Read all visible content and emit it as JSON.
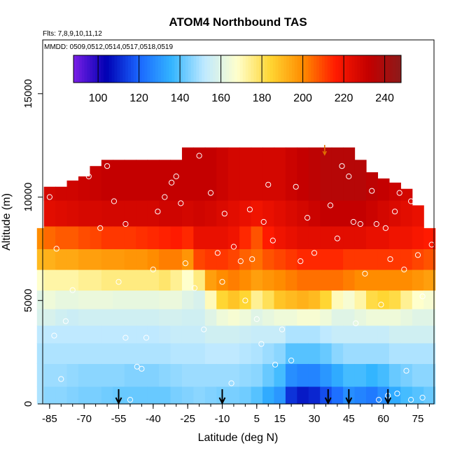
{
  "chart_data": {
    "type": "heatmap",
    "title": "ATOM4 Northbound TAS",
    "subtitle_flights": "Flts: 7,8,9,10,11,12",
    "subtitle_dates": "MMDD: 0509,0512,0514,0517,0518,0519",
    "xlabel": "Latitude (deg N)",
    "ylabel": "Altitude (m)",
    "xlim": [
      -88,
      82
    ],
    "ylim": [
      0,
      17600
    ],
    "x_ticks": [
      -85,
      -70,
      -55,
      -40,
      -25,
      -10,
      5,
      15,
      30,
      45,
      60,
      75
    ],
    "x_tick_labels": [
      "-85",
      "-70",
      "-55",
      "-40",
      "-25",
      "-10",
      "5",
      "15",
      "30",
      "45",
      "60",
      "75"
    ],
    "y_ticks": [
      0,
      5000,
      10000,
      15000
    ],
    "y_tick_labels": [
      "0",
      "5000",
      "10000",
      "15000"
    ],
    "grid": false,
    "colorbar": {
      "min": 88,
      "max": 248,
      "ticks": [
        100,
        120,
        140,
        160,
        180,
        200,
        220,
        240
      ],
      "tick_labels": [
        "100",
        "120",
        "140",
        "160",
        "180",
        "200",
        "220",
        "240"
      ],
      "colors": [
        "#7a1fe6",
        "#0000b3",
        "#1a66ff",
        "#33b5ff",
        "#bfe9ff",
        "#ffffcc",
        "#ffd633",
        "#ff8c00",
        "#ff1a00",
        "#c40000",
        "#8c1a1a"
      ],
      "placement": "top-inside"
    },
    "columns": [
      {
        "lat": -88,
        "top": 8500,
        "vals": [
          150,
          150,
          150,
          152,
          158,
          160,
          168,
          190,
          200,
          222,
          226
        ]
      },
      {
        "lat": -85,
        "top": 10500,
        "vals": [
          146,
          148,
          150,
          152,
          158,
          164,
          172,
          192,
          205,
          224,
          228
        ]
      },
      {
        "lat": -80,
        "top": 10500,
        "vals": [
          146,
          148,
          150,
          152,
          156,
          162,
          172,
          194,
          207,
          225,
          229
        ]
      },
      {
        "lat": -75,
        "top": 10800,
        "vals": [
          145,
          147,
          150,
          152,
          155,
          162,
          172,
          194,
          207,
          226,
          229
        ]
      },
      {
        "lat": -70,
        "top": 11000,
        "vals": [
          144,
          146,
          150,
          152,
          156,
          163,
          174,
          196,
          209,
          227,
          230
        ]
      },
      {
        "lat": -65,
        "top": 11500,
        "vals": [
          144,
          146,
          150,
          152,
          156,
          163,
          174,
          196,
          210,
          227,
          231
        ]
      },
      {
        "lat": -60,
        "top": 11800,
        "vals": [
          143,
          146,
          150,
          152,
          156,
          163,
          176,
          197,
          212,
          228,
          232
        ]
      },
      {
        "lat": -55,
        "top": 11800,
        "vals": [
          142,
          146,
          150,
          152,
          156,
          162,
          176,
          197,
          212,
          228,
          232
        ]
      },
      {
        "lat": -50,
        "top": 11800,
        "vals": [
          142,
          145,
          150,
          152,
          156,
          162,
          176,
          198,
          212,
          228,
          232
        ]
      },
      {
        "lat": -45,
        "top": 11800,
        "vals": [
          142,
          145,
          150,
          152,
          156,
          162,
          176,
          198,
          213,
          228,
          232
        ]
      },
      {
        "lat": -40,
        "top": 11800,
        "vals": [
          142,
          145,
          150,
          152,
          156,
          162,
          176,
          200,
          214,
          228,
          232
        ]
      },
      {
        "lat": -35,
        "top": 11800,
        "vals": [
          142,
          146,
          150,
          153,
          157,
          163,
          178,
          202,
          215,
          229,
          232
        ]
      },
      {
        "lat": -30,
        "top": 11800,
        "vals": [
          144,
          147,
          151,
          154,
          157,
          163,
          174,
          202,
          216,
          229,
          232
        ]
      },
      {
        "lat": -25,
        "top": 12400,
        "vals": [
          145,
          148,
          151,
          154,
          156,
          160,
          168,
          198,
          214,
          228,
          232
        ]
      },
      {
        "lat": -20,
        "top": 12400,
        "vals": [
          146,
          148,
          151,
          154,
          156,
          158,
          176,
          210,
          222,
          229,
          232
        ]
      },
      {
        "lat": -15,
        "top": 12400,
        "vals": [
          145,
          148,
          152,
          156,
          160,
          170,
          196,
          212,
          222,
          228,
          232
        ]
      },
      {
        "lat": -10,
        "top": 12400,
        "vals": [
          144,
          148,
          152,
          156,
          164,
          184,
          200,
          212,
          222,
          226,
          230
        ]
      },
      {
        "lat": -5,
        "top": 12400,
        "vals": [
          144,
          148,
          152,
          156,
          166,
          188,
          202,
          210,
          220,
          224,
          228
        ]
      },
      {
        "lat": 0,
        "top": 12400,
        "vals": [
          143,
          147,
          151,
          155,
          164,
          184,
          200,
          206,
          214,
          222,
          228
        ]
      },
      {
        "lat": 5,
        "top": 12400,
        "vals": [
          140,
          146,
          150,
          154,
          160,
          174,
          196,
          204,
          208,
          220,
          228
        ]
      },
      {
        "lat": 10,
        "top": 12400,
        "vals": [
          134,
          142,
          148,
          154,
          162,
          180,
          198,
          208,
          216,
          222,
          228
        ]
      },
      {
        "lat": 15,
        "top": 12400,
        "vals": [
          130,
          138,
          146,
          154,
          164,
          188,
          200,
          210,
          220,
          224,
          228
        ]
      },
      {
        "lat": 20,
        "top": 12400,
        "vals": [
          112,
          128,
          140,
          150,
          164,
          190,
          202,
          212,
          222,
          226,
          230
        ]
      },
      {
        "lat": 25,
        "top": 12400,
        "vals": [
          108,
          126,
          140,
          150,
          166,
          192,
          204,
          214,
          224,
          228,
          232
        ]
      },
      {
        "lat": 30,
        "top": 12400,
        "vals": [
          110,
          126,
          140,
          150,
          166,
          190,
          204,
          214,
          224,
          230,
          234
        ]
      },
      {
        "lat": 35,
        "top": 12400,
        "vals": [
          116,
          130,
          142,
          152,
          164,
          184,
          204,
          214,
          224,
          232,
          236
        ]
      },
      {
        "lat": 40,
        "top": 12400,
        "vals": [
          122,
          134,
          146,
          154,
          160,
          170,
          204,
          214,
          224,
          232,
          236
        ]
      },
      {
        "lat": 45,
        "top": 12400,
        "vals": [
          128,
          138,
          148,
          154,
          160,
          166,
          202,
          212,
          224,
          232,
          236
        ]
      },
      {
        "lat": 50,
        "top": 11800,
        "vals": [
          126,
          138,
          148,
          154,
          162,
          172,
          200,
          212,
          224,
          232,
          236
        ]
      },
      {
        "lat": 55,
        "top": 11200,
        "vals": [
          124,
          136,
          148,
          154,
          164,
          182,
          200,
          212,
          222,
          230,
          234
        ]
      },
      {
        "lat": 60,
        "top": 10900,
        "vals": [
          128,
          138,
          148,
          154,
          164,
          184,
          200,
          212,
          222,
          228,
          232
        ]
      },
      {
        "lat": 65,
        "top": 10700,
        "vals": [
          134,
          142,
          150,
          156,
          164,
          182,
          200,
          212,
          220,
          226,
          230
        ]
      },
      {
        "lat": 70,
        "top": 10400,
        "vals": [
          138,
          144,
          150,
          156,
          162,
          174,
          200,
          212,
          220,
          224,
          228
        ]
      },
      {
        "lat": 75,
        "top": 9600,
        "vals": [
          140,
          146,
          150,
          156,
          160,
          168,
          198,
          210,
          218,
          222,
          226
        ]
      },
      {
        "lat": 80,
        "top": 8500,
        "vals": [
          142,
          146,
          150,
          156,
          160,
          166,
          196,
          208,
          216,
          220,
          224
        ]
      }
    ],
    "altitude_levels": [
      300,
      1400,
      2500,
      3400,
      4200,
      5000,
      6000,
      7000,
      8000,
      9200,
      10500
    ],
    "observations": [
      [
        -85,
        10000
      ],
      [
        -82,
        7500
      ],
      [
        -75,
        5500
      ],
      [
        -78,
        4000
      ],
      [
        -83,
        3300
      ],
      [
        -80,
        1200
      ],
      [
        -68,
        11000
      ],
      [
        -63,
        8500
      ],
      [
        -60,
        11500
      ],
      [
        -57,
        9800
      ],
      [
        -52,
        8700
      ],
      [
        -55,
        5900
      ],
      [
        -52,
        3200
      ],
      [
        -50,
        200
      ],
      [
        -47,
        1800
      ],
      [
        -45,
        1700
      ],
      [
        -43,
        3200
      ],
      [
        -40,
        6500
      ],
      [
        -38,
        9300
      ],
      [
        -35,
        10000
      ],
      [
        -32,
        10700
      ],
      [
        -30,
        11000
      ],
      [
        -28,
        9700
      ],
      [
        -26,
        6800
      ],
      [
        -22,
        5600
      ],
      [
        -20,
        12000
      ],
      [
        -18,
        3600
      ],
      [
        -15,
        10200
      ],
      [
        -12,
        7300
      ],
      [
        -10,
        5900
      ],
      [
        -9,
        9200
      ],
      [
        -6,
        1000
      ],
      [
        -5,
        7600
      ],
      [
        -2,
        6900
      ],
      [
        0,
        5000
      ],
      [
        2,
        9400
      ],
      [
        3,
        7000
      ],
      [
        5,
        4100
      ],
      [
        7,
        2900
      ],
      [
        8,
        8800
      ],
      [
        10,
        10600
      ],
      [
        12,
        7900
      ],
      [
        13,
        1900
      ],
      [
        16,
        3600
      ],
      [
        20,
        2100
      ],
      [
        22,
        10500
      ],
      [
        24,
        6900
      ],
      [
        27,
        9000
      ],
      [
        30,
        7300
      ],
      [
        34,
        12700
      ],
      [
        37,
        9600
      ],
      [
        40,
        8000
      ],
      [
        42,
        11500
      ],
      [
        45,
        11000
      ],
      [
        47,
        8800
      ],
      [
        48,
        3900
      ],
      [
        50,
        8700
      ],
      [
        52,
        6300
      ],
      [
        55,
        10300
      ],
      [
        57,
        8700
      ],
      [
        59,
        4800
      ],
      [
        61,
        8500
      ],
      [
        63,
        7000
      ],
      [
        65,
        9300
      ],
      [
        67,
        10200
      ],
      [
        69,
        6500
      ],
      [
        70,
        1600
      ],
      [
        72,
        9800
      ],
      [
        75,
        7200
      ],
      [
        77,
        5200
      ],
      [
        79,
        9500
      ],
      [
        81,
        7700
      ],
      [
        58,
        200
      ],
      [
        62,
        400
      ],
      [
        66,
        500
      ],
      [
        72,
        200
      ],
      [
        77,
        300
      ]
    ],
    "profile_markers_lat": [
      -55,
      -10,
      36,
      45,
      62
    ]
  }
}
